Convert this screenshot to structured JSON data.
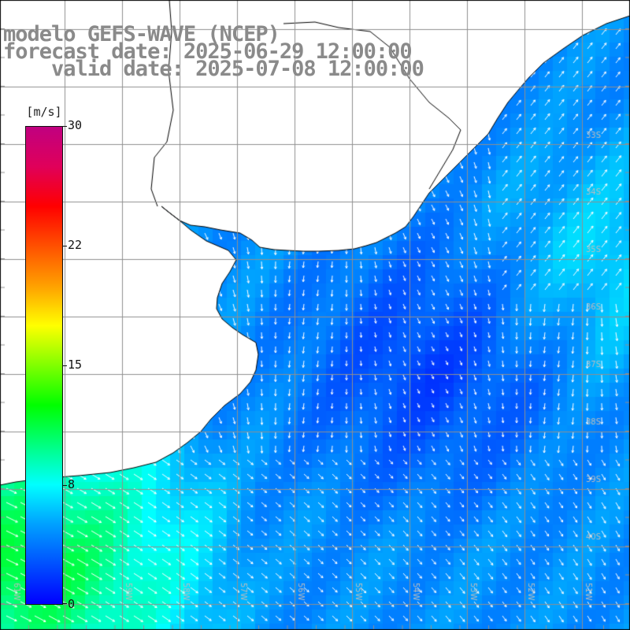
{
  "titles": {
    "model": "modelo GEFS-WAVE (NCEP)",
    "forecast": "forecast date: 2025-06-29 12:00:00",
    "valid": "    valid date: 2025-07-08 12:00:00"
  },
  "colorbar": {
    "unit": "[m/s]",
    "ticks": [
      "30",
      "22",
      "15",
      "8",
      "0"
    ],
    "tick_values": [
      30,
      22,
      15,
      8,
      0
    ],
    "range": [
      0,
      30
    ],
    "colors": [
      "#0000ff",
      "#0050ff",
      "#00a0ff",
      "#00ffff",
      "#00ff80",
      "#00ff00",
      "#80ff00",
      "#ffff00",
      "#ffa000",
      "#ff5000",
      "#ff0000",
      "#e0005a",
      "#c00080"
    ]
  },
  "map": {
    "projection": "lat-lon",
    "grid": true,
    "lat_labels": [
      "33S",
      "34S",
      "35S",
      "36S",
      "37S",
      "38S",
      "39S",
      "40S"
    ],
    "lon_labels": [
      "61W",
      "59W",
      "58W",
      "57W",
      "56W",
      "55W",
      "54W",
      "53W",
      "52W",
      "51W"
    ],
    "land_color": "#ffffff",
    "coastline_color": "#000000",
    "arrow_color": "#ffffff",
    "field": "wind speed",
    "field_pattern": "8-11 m/s in south-west corner, 3-6 m/s over most of the area, minimum near 35S-38S 55W"
  }
}
